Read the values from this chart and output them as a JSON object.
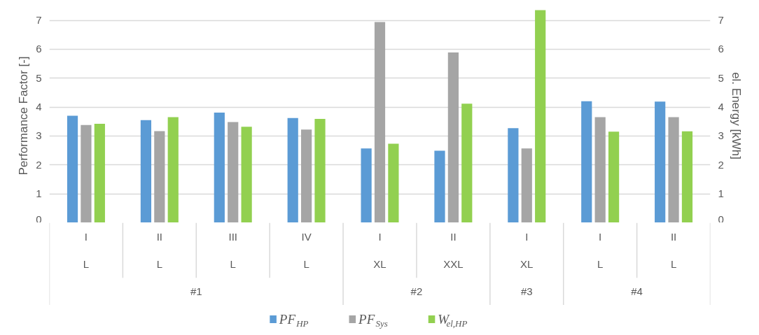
{
  "chart_data": {
    "type": "bar",
    "categories": [
      [
        "#1",
        "L",
        "I"
      ],
      [
        null,
        "L",
        "II"
      ],
      [
        null,
        "L",
        "III"
      ],
      [
        null,
        "L",
        "IV"
      ],
      [
        "#2",
        "XL",
        "I"
      ],
      [
        null,
        "XXL",
        "II"
      ],
      [
        "#3",
        "XL",
        "I"
      ],
      [
        "#4",
        "L",
        "I"
      ],
      [
        null,
        "L",
        "II"
      ]
    ],
    "ylabel": "Performance Factor [-]",
    "y2label": "el. Energy [kWh]",
    "ylim": [
      0,
      7.4
    ],
    "yticks": [
      0,
      1,
      2,
      3,
      4,
      5,
      6,
      7
    ],
    "y2lim": [
      0,
      7.4
    ],
    "y2ticks": [
      0,
      1,
      2,
      3,
      4,
      5,
      6,
      7
    ],
    "grid": "y",
    "legend": "bottom",
    "series": [
      {
        "name": "PF$_{HP}$",
        "color": "#5b9bd5",
        "values": [
          3.7,
          3.55,
          3.81,
          3.62,
          2.57,
          2.49,
          3.27,
          4.2,
          4.19
        ]
      },
      {
        "name": "PF$_{Sys}$",
        "color": "#a5a5a5",
        "values": [
          3.38,
          3.17,
          3.48,
          3.22,
          6.94,
          5.89,
          2.57,
          3.65,
          3.65
        ]
      },
      {
        "name": "W$_{el,HP}$",
        "color": "#92d050",
        "values": [
          3.42,
          3.65,
          3.32,
          3.59,
          2.73,
          4.12,
          7.35,
          3.15,
          3.16
        ]
      }
    ]
  }
}
